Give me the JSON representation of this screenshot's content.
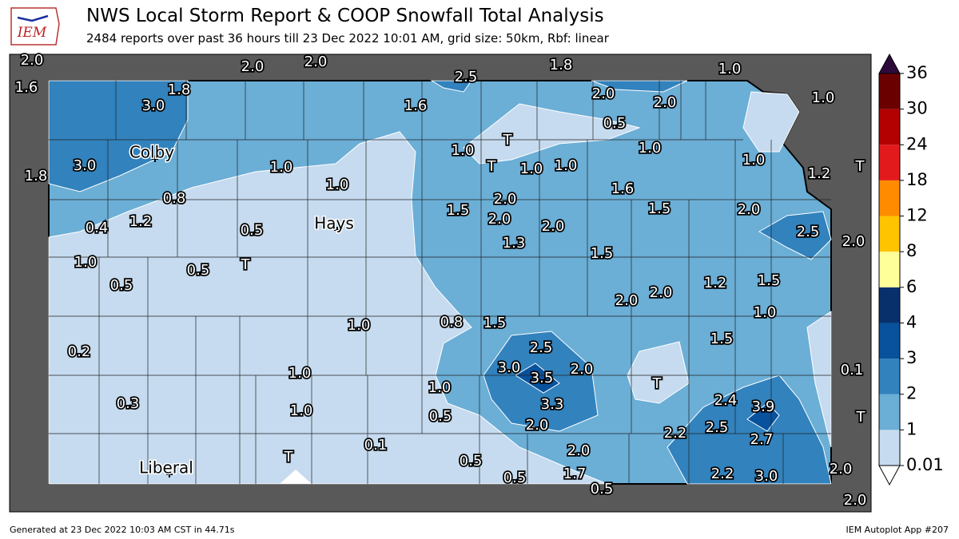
{
  "header": {
    "title": "NWS Local Storm Report & COOP Snowfall Total Analysis",
    "subtitle": "2484 reports over past 36 hours till 23 Dec 2022 10:01 AM, grid size: 50km, Rbf: linear",
    "logo": "IEM"
  },
  "cities": [
    "Colby",
    "Hays",
    "Liberal"
  ],
  "reports": [
    "2.0",
    "1.6",
    "2.0",
    "2.0",
    "2.5",
    "1.8",
    "1.0",
    "1.0",
    "1.8",
    "3.0",
    "1.6",
    "2.0",
    "2.0",
    "0.5",
    "T",
    "1.0",
    "1.0",
    "T",
    "1.0",
    "1.0",
    "1.0",
    "1.2",
    "T",
    "3.0",
    "1.8",
    "1.0",
    "1.0",
    "1.6",
    "0.8",
    "2.0",
    "1.5",
    "2.0",
    "1.5",
    "2.0",
    "1.2",
    "0.5",
    "2.0",
    "2.5",
    "0.4",
    "2.0",
    "1.3",
    "1.5",
    "1.0",
    "T",
    "0.5",
    "0.5",
    "1.2",
    "1.5",
    "2.0",
    "2.0",
    "1.0",
    "0.8",
    "1.5",
    "1.0",
    "1.5",
    "2.5",
    "0.2",
    "3.0",
    "3.5",
    "2.0",
    "0.1",
    "1.0",
    "T",
    "1.0",
    "3.3",
    "2.4",
    "3.9",
    "0.3",
    "1.0",
    "0.5",
    "T",
    "2.0",
    "2.5",
    "2.2",
    "2.7",
    "0.1",
    "2.0",
    "T",
    "0.5",
    "2.0",
    "1.7",
    "2.2",
    "3.0",
    "0.5",
    "0.5",
    "2.0"
  ],
  "colorbar": {
    "levels": [
      0.01,
      1,
      2,
      3,
      4,
      6,
      8,
      12,
      18,
      24,
      30,
      36
    ],
    "colors": [
      "#c6dbef",
      "#6baed6",
      "#3182bd",
      "#08519c",
      "#08306b",
      "#ffff99",
      "#ffc400",
      "#ff8c00",
      "#e31a1c",
      "#b30000",
      "#6b0000"
    ],
    "over_color": "#2d0a3c"
  },
  "footer": {
    "left": "Generated at 23 Dec 2022 10:03 AM CST in 44.71s",
    "right": "IEM Autoplot App #207"
  }
}
